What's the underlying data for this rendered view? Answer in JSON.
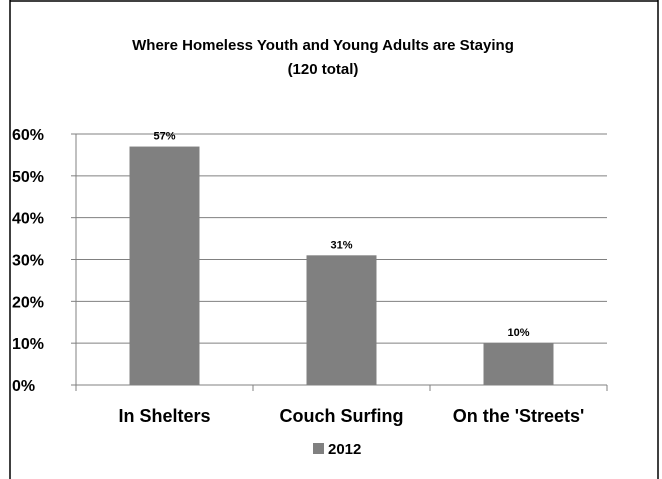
{
  "chart_data": {
    "type": "bar",
    "title": "Where Homeless Youth and Young Adults are Staying",
    "subtitle": "(120 total)",
    "categories": [
      "In Shelters",
      "Couch Surfing",
      "On the 'Streets'"
    ],
    "series": [
      {
        "name": "2012",
        "values": [
          57,
          31,
          10
        ],
        "color": "#808080"
      }
    ],
    "data_labels": [
      "57%",
      "31%",
      "10%"
    ],
    "y_ticks": [
      "0%",
      "10%",
      "20%",
      "30%",
      "40%",
      "50%",
      "60%"
    ],
    "ylim": [
      0,
      60
    ],
    "grid": true,
    "legend": "bottom"
  }
}
